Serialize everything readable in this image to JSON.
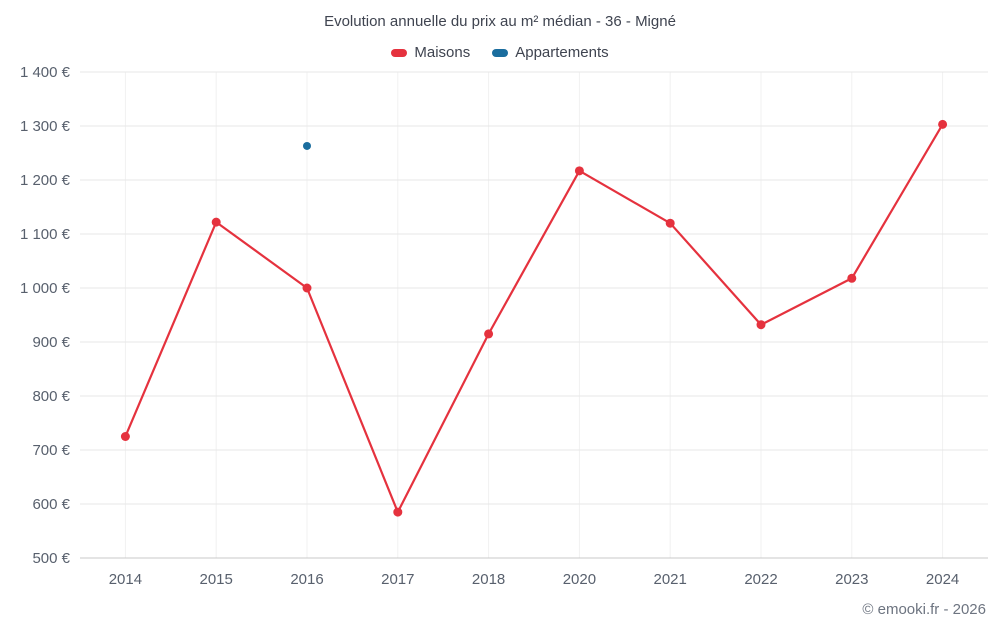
{
  "chart_data": {
    "type": "line",
    "title": "Evolution annuelle du prix au m² médian - 36 - Migné",
    "categories": [
      "2014",
      "2015",
      "2016",
      "2017",
      "2018",
      "2020",
      "2021",
      "2022",
      "2023",
      "2024"
    ],
    "series": [
      {
        "name": "Maisons",
        "color": "#e5323e",
        "values": [
          725,
          1122,
          1000,
          585,
          915,
          1217,
          1120,
          932,
          1018,
          1303
        ]
      },
      {
        "name": "Appartements",
        "color": "#1a6d9e",
        "points": [
          {
            "x": "2016",
            "y": 1263
          }
        ]
      }
    ],
    "ylim": [
      500,
      1400
    ],
    "y_ticks": [
      500,
      600,
      700,
      800,
      900,
      1000,
      1100,
      1200,
      1300,
      1400
    ],
    "y_tick_suffix": " €",
    "grid": "on",
    "legend_position": "top",
    "footer": "© emooki.fr - 2026"
  },
  "colors": {
    "grid_h": "#e7e7e7",
    "grid_v": "#f1f1f1",
    "axis": "#c8c8c8",
    "tick_text": "#58606d"
  }
}
